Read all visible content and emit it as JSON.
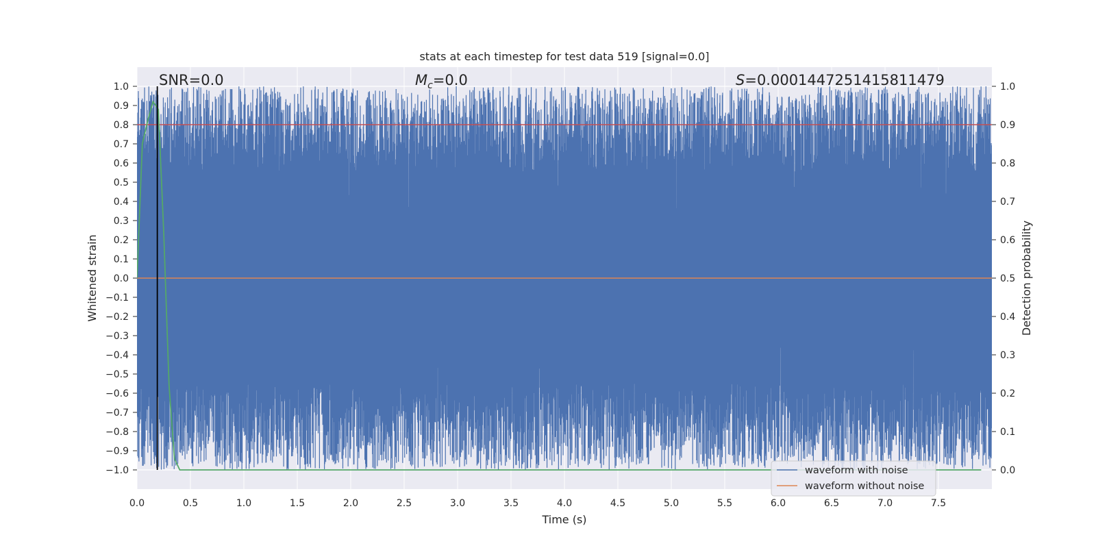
{
  "chart_data": {
    "type": "line",
    "title": "stats at each timestep for test data 519 [signal=0.0]",
    "xlabel": "Time (s)",
    "ylabel": "Whitened strain",
    "ylabel_right": "Detection probability",
    "xlim": [
      0.0,
      8.0
    ],
    "ylim": [
      -1.1,
      1.1
    ],
    "ylim_right": [
      -0.05,
      1.05
    ],
    "x_ticks": [
      "0.0",
      "0.5",
      "1.0",
      "1.5",
      "2.0",
      "2.5",
      "3.0",
      "3.5",
      "4.0",
      "4.5",
      "5.0",
      "5.5",
      "6.0",
      "6.5",
      "7.0",
      "7.5"
    ],
    "y_ticks": [
      "1.0",
      "0.9",
      "0.8",
      "0.7",
      "0.6",
      "0.5",
      "0.4",
      "0.3",
      "0.2",
      "0.1",
      "0.0",
      "−0.1",
      "−0.2",
      "−0.3",
      "−0.4",
      "−0.5",
      "−0.6",
      "−0.7",
      "−0.8",
      "−0.9",
      "−1.0"
    ],
    "y_ticks_right": [
      "1.0",
      "0.9",
      "0.8",
      "0.7",
      "0.6",
      "0.5",
      "0.4",
      "0.3",
      "0.2",
      "0.1",
      "0.0"
    ],
    "grid": true,
    "legend_position": "bottom-right",
    "annotations": {
      "snr": "SNR=0.0",
      "mc_symbol": "M",
      "mc_sub": "c",
      "mc_value": "=0.0",
      "s_symbol": "S",
      "s_value": "=0.0001447251415811479"
    },
    "series": [
      {
        "name": "waveform with noise",
        "color": "#4c72b0",
        "description": "whitened noisy strain spanning approximately -1.0 to 1.0 over 0-8 s",
        "y_range": [
          -1.0,
          1.0
        ]
      },
      {
        "name": "waveform without noise",
        "color": "#dd8452",
        "x": [
          0.0,
          8.0
        ],
        "y": [
          0.0,
          0.0
        ]
      },
      {
        "color": "#c44e52",
        "axis": "right",
        "x": [
          0.0,
          8.0
        ],
        "y": [
          0.9,
          0.9
        ]
      },
      {
        "color": "#55a868",
        "axis": "right",
        "x": [
          0.0,
          0.05,
          0.1,
          0.15,
          0.2,
          0.25,
          0.3,
          0.35,
          0.4,
          1.0,
          2.0,
          3.0,
          4.0,
          5.0,
          6.0,
          7.0,
          7.9
        ],
        "y": [
          0.5,
          0.85,
          0.91,
          0.96,
          0.94,
          0.62,
          0.22,
          0.03,
          0.0,
          0.0,
          0.0,
          0.0,
          0.0,
          0.0,
          0.0,
          0.0,
          0.0
        ]
      },
      {
        "color": "#000000",
        "type": "vline",
        "x": 0.19
      }
    ],
    "colors": {
      "background": "#eaeaf2",
      "grid": "#ffffff",
      "noise": "#4c72b0",
      "clean": "#dd8452",
      "threshold": "#c44e52",
      "probability": "#55a868",
      "marker": "#000000"
    }
  }
}
